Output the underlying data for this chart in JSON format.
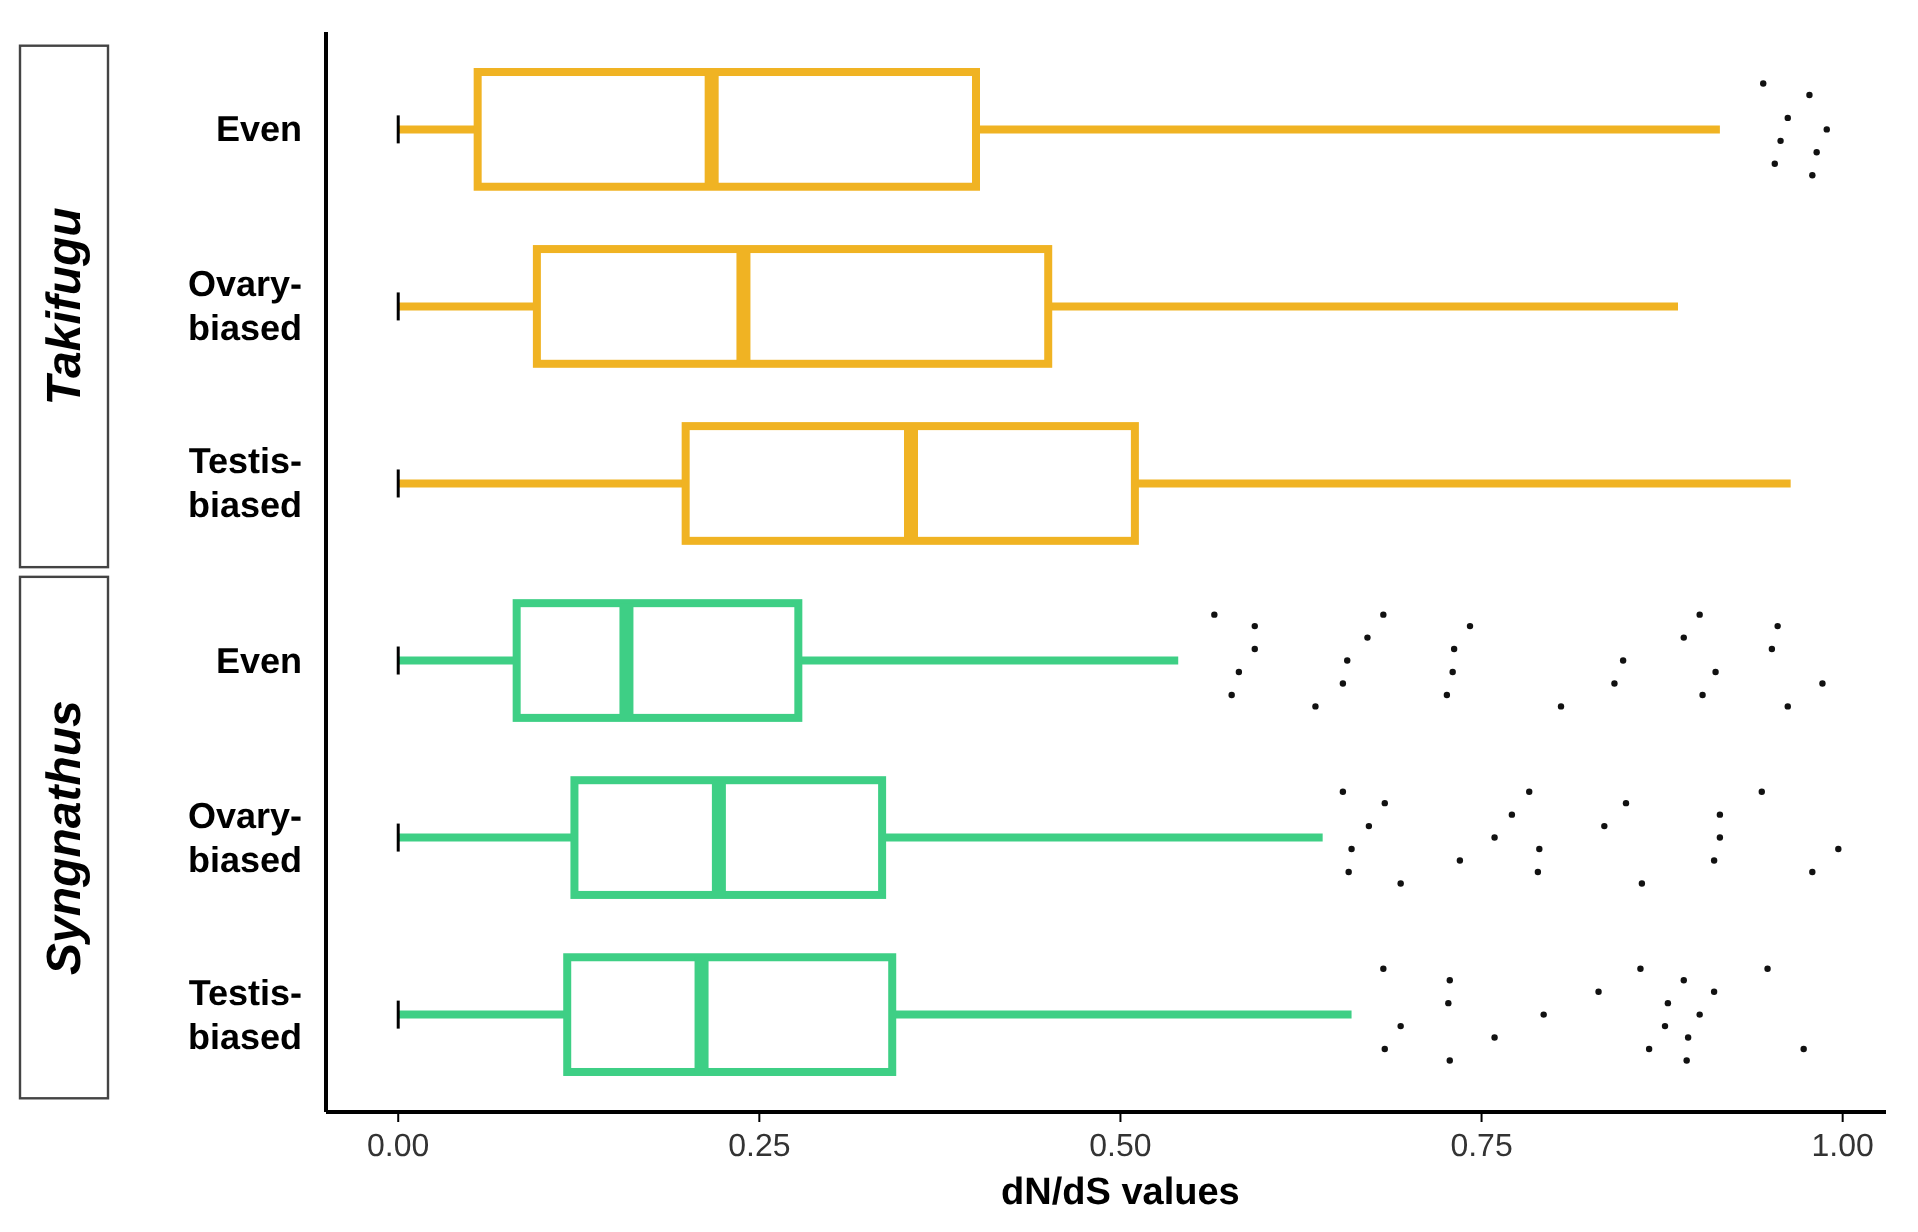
{
  "chart_data": {
    "type": "box",
    "orientation": "horizontal",
    "xlabel": "dN/dS values",
    "categories": [
      "Even",
      "Ovary-biased",
      "Testis-biased",
      "Even",
      "Ovary-biased",
      "Testis-biased"
    ],
    "colors": [
      "#f0b323",
      "#f0b323",
      "#f0b323",
      "#3ecf85",
      "#3ecf85",
      "#3ecf85"
    ],
    "boxes": [
      {
        "low": 0,
        "q1": 0.055,
        "median": 0.217,
        "q3": 0.4,
        "high": 0.915,
        "outliers": [
          0.945,
          0.953,
          0.957,
          0.962,
          0.977,
          0.979,
          0.982,
          0.989
        ]
      },
      {
        "low": 0,
        "q1": 0.096,
        "median": 0.239,
        "q3": 0.45,
        "high": 0.886
      },
      {
        "low": 0,
        "q1": 0.199,
        "median": 0.355,
        "q3": 0.51,
        "high": 0.964
      },
      {
        "low": 0,
        "q1": 0.082,
        "median": 0.158,
        "q3": 0.277,
        "high": 0.54,
        "outliers": [
          0.565,
          0.577,
          0.582,
          0.593,
          0.593,
          0.635,
          0.654,
          0.657,
          0.671,
          0.682,
          0.726,
          0.73,
          0.731,
          0.742,
          0.805,
          0.842,
          0.848,
          0.89,
          0.901,
          0.903,
          0.912,
          0.951,
          0.955,
          0.962,
          0.986
        ]
      },
      {
        "low": 0,
        "q1": 0.122,
        "median": 0.222,
        "q3": 0.335,
        "high": 0.64,
        "outliers": [
          0.654,
          0.658,
          0.66,
          0.672,
          0.683,
          0.694,
          0.735,
          0.759,
          0.771,
          0.783,
          0.789,
          0.79,
          0.835,
          0.85,
          0.861,
          0.911,
          0.915,
          0.915,
          0.944,
          0.979,
          0.997
        ]
      },
      {
        "low": 0,
        "q1": 0.117,
        "median": 0.21,
        "q3": 0.342,
        "high": 0.66,
        "outliers": [
          0.682,
          0.683,
          0.694,
          0.727,
          0.728,
          0.728,
          0.759,
          0.793,
          0.831,
          0.86,
          0.866,
          0.877,
          0.879,
          0.89,
          0.892,
          0.893,
          0.901,
          0.911,
          0.948,
          0.973
        ]
      }
    ],
    "xlim": [
      -0.05,
      1.03
    ],
    "xticks": [
      {
        "value": 0,
        "label": "0.00"
      },
      {
        "value": 0.25,
        "label": "0.25"
      },
      {
        "value": 0.5,
        "label": "0.50"
      },
      {
        "value": 0.75,
        "label": "0.75"
      },
      {
        "value": 1,
        "label": "1.00"
      }
    ],
    "annotations": [
      "Takifugu",
      "Syngnathus"
    ],
    "grid": false
  }
}
